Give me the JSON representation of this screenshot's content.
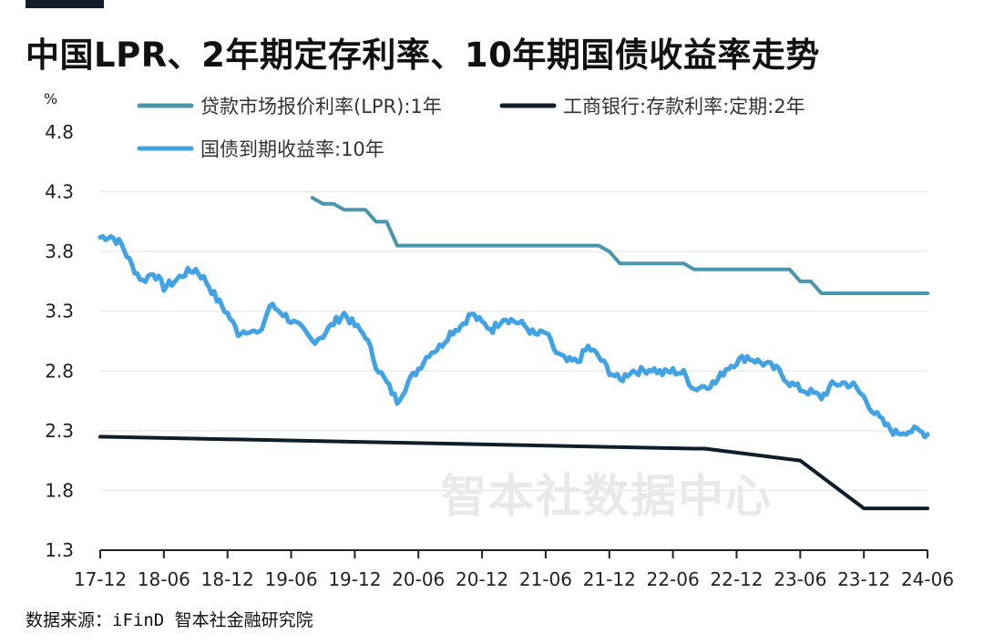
{
  "header": {
    "title": "中国LPR、2年期定存利率、10年期国债收益率走势"
  },
  "footer": {
    "source": "数据来源：iFinD 智本社金融研究院"
  },
  "watermark": "智本社数据中心",
  "colors": {
    "lpr": "#4a97ad",
    "deposit": "#0f1e2c",
    "bond": "#41a3e3",
    "grid": "#e3e3e3",
    "axis": "#222222"
  },
  "chart_data": {
    "type": "line",
    "ylabel": "%",
    "ylim": [
      1.3,
      4.8
    ],
    "yticks": [
      1.3,
      1.8,
      2.3,
      2.8,
      3.3,
      3.8,
      4.3,
      4.8
    ],
    "xlim": [
      "2017-12",
      "2024-06"
    ],
    "xticks": [
      "17-12",
      "18-06",
      "18-12",
      "19-06",
      "19-12",
      "20-06",
      "20-12",
      "21-06",
      "21-12",
      "22-06",
      "22-12",
      "23-06",
      "23-12",
      "24-06"
    ],
    "grid": true,
    "legend_position": "top",
    "series": [
      {
        "name": "贷款市场报价利率(LPR):1年",
        "color_key": "lpr",
        "points": [
          [
            "2019-08",
            4.25
          ],
          [
            "2019-09",
            4.2
          ],
          [
            "2019-10",
            4.2
          ],
          [
            "2019-11",
            4.15
          ],
          [
            "2019-12",
            4.15
          ],
          [
            "2020-01",
            4.15
          ],
          [
            "2020-02",
            4.05
          ],
          [
            "2020-03",
            4.05
          ],
          [
            "2020-04",
            3.85
          ],
          [
            "2021-11",
            3.85
          ],
          [
            "2021-12",
            3.8
          ],
          [
            "2022-01",
            3.7
          ],
          [
            "2022-07",
            3.7
          ],
          [
            "2022-08",
            3.65
          ],
          [
            "2023-05",
            3.65
          ],
          [
            "2023-06",
            3.55
          ],
          [
            "2023-07",
            3.55
          ],
          [
            "2023-08",
            3.45
          ],
          [
            "2024-06",
            3.45
          ]
        ]
      },
      {
        "name": "工商银行:存款利率:定期:2年",
        "color_key": "deposit",
        "points": [
          [
            "2017-12",
            2.25
          ],
          [
            "2022-08",
            2.15
          ],
          [
            "2022-09",
            2.15
          ],
          [
            "2023-06",
            2.05
          ],
          [
            "2023-09",
            1.85
          ],
          [
            "2023-12",
            1.65
          ],
          [
            "2024-06",
            1.65
          ]
        ]
      },
      {
        "name": "国债到期收益率:10年",
        "color_key": "bond",
        "points": [
          [
            "2017-12",
            3.92
          ],
          [
            "2018-01",
            3.93
          ],
          [
            "2018-02",
            3.86
          ],
          [
            "2018-03",
            3.68
          ],
          [
            "2018-04",
            3.55
          ],
          [
            "2018-05",
            3.63
          ],
          [
            "2018-06",
            3.5
          ],
          [
            "2018-07",
            3.55
          ],
          [
            "2018-08",
            3.62
          ],
          [
            "2018-09",
            3.65
          ],
          [
            "2018-10",
            3.55
          ],
          [
            "2018-11",
            3.4
          ],
          [
            "2018-12",
            3.28
          ],
          [
            "2019-01",
            3.12
          ],
          [
            "2019-02",
            3.15
          ],
          [
            "2019-03",
            3.1
          ],
          [
            "2019-04",
            3.35
          ],
          [
            "2019-05",
            3.3
          ],
          [
            "2019-06",
            3.22
          ],
          [
            "2019-07",
            3.15
          ],
          [
            "2019-08",
            3.05
          ],
          [
            "2019-09",
            3.1
          ],
          [
            "2019-10",
            3.2
          ],
          [
            "2019-11",
            3.28
          ],
          [
            "2019-12",
            3.18
          ],
          [
            "2020-01",
            3.1
          ],
          [
            "2020-02",
            2.85
          ],
          [
            "2020-03",
            2.7
          ],
          [
            "2020-04",
            2.55
          ],
          [
            "2020-05",
            2.7
          ],
          [
            "2020-06",
            2.82
          ],
          [
            "2020-07",
            2.95
          ],
          [
            "2020-08",
            3.0
          ],
          [
            "2020-09",
            3.12
          ],
          [
            "2020-10",
            3.18
          ],
          [
            "2020-11",
            3.28
          ],
          [
            "2020-12",
            3.2
          ],
          [
            "2021-01",
            3.15
          ],
          [
            "2021-02",
            3.25
          ],
          [
            "2021-03",
            3.22
          ],
          [
            "2021-04",
            3.18
          ],
          [
            "2021-05",
            3.1
          ],
          [
            "2021-06",
            3.12
          ],
          [
            "2021-07",
            2.95
          ],
          [
            "2021-08",
            2.88
          ],
          [
            "2021-09",
            2.88
          ],
          [
            "2021-10",
            3.0
          ],
          [
            "2021-11",
            2.92
          ],
          [
            "2021-12",
            2.8
          ],
          [
            "2022-01",
            2.72
          ],
          [
            "2022-02",
            2.8
          ],
          [
            "2022-03",
            2.8
          ],
          [
            "2022-04",
            2.82
          ],
          [
            "2022-05",
            2.78
          ],
          [
            "2022-06",
            2.8
          ],
          [
            "2022-07",
            2.78
          ],
          [
            "2022-08",
            2.65
          ],
          [
            "2022-09",
            2.68
          ],
          [
            "2022-10",
            2.7
          ],
          [
            "2022-11",
            2.82
          ],
          [
            "2022-12",
            2.88
          ],
          [
            "2023-01",
            2.92
          ],
          [
            "2023-02",
            2.88
          ],
          [
            "2023-03",
            2.85
          ],
          [
            "2023-04",
            2.8
          ],
          [
            "2023-05",
            2.7
          ],
          [
            "2023-06",
            2.65
          ],
          [
            "2023-07",
            2.62
          ],
          [
            "2023-08",
            2.58
          ],
          [
            "2023-09",
            2.68
          ],
          [
            "2023-10",
            2.7
          ],
          [
            "2023-11",
            2.68
          ],
          [
            "2023-12",
            2.58
          ],
          [
            "2024-01",
            2.45
          ],
          [
            "2024-02",
            2.35
          ],
          [
            "2024-03",
            2.28
          ],
          [
            "2024-04",
            2.3
          ],
          [
            "2024-05",
            2.3
          ],
          [
            "2024-06",
            2.27
          ]
        ]
      }
    ]
  }
}
